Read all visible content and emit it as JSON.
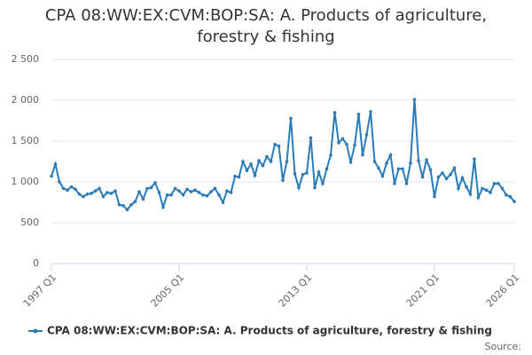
{
  "chart_data": {
    "type": "line",
    "title": "CPA 08:WW:EX:CVM:BOP:SA: A. Products of agriculture, forestry & fishing",
    "source": "Source:",
    "categories": [
      "1997 Q1",
      null,
      null,
      null,
      null,
      null,
      null,
      null,
      null,
      null,
      null,
      null,
      null,
      null,
      null,
      null,
      null,
      null,
      null,
      null,
      null,
      null,
      null,
      null,
      null,
      null,
      null,
      null,
      null,
      null,
      null,
      null,
      "2005 Q1",
      null,
      null,
      null,
      null,
      null,
      null,
      null,
      null,
      null,
      null,
      null,
      null,
      null,
      null,
      null,
      null,
      null,
      null,
      null,
      null,
      null,
      null,
      null,
      null,
      null,
      null,
      null,
      null,
      null,
      null,
      null,
      "2013 Q1",
      null,
      null,
      null,
      null,
      null,
      null,
      null,
      null,
      null,
      null,
      null,
      null,
      null,
      null,
      null,
      null,
      null,
      null,
      null,
      null,
      null,
      null,
      null,
      null,
      null,
      null,
      null,
      null,
      null,
      null,
      null,
      "2021 Q1",
      null,
      null,
      null,
      null,
      null,
      null,
      null,
      null,
      null,
      null,
      null,
      null,
      null,
      null,
      null,
      null,
      null,
      null,
      null,
      "2026 Q1"
    ],
    "series": [
      {
        "name": "CPA 08:WW:EX:CVM:BOP:SA: A. Products of agriculture, forestry & fishing",
        "color": "#2b7bb9",
        "values": [
          1070,
          1220,
          1000,
          920,
          900,
          940,
          910,
          850,
          820,
          850,
          860,
          890,
          920,
          820,
          870,
          860,
          890,
          720,
          710,
          660,
          720,
          760,
          880,
          790,
          920,
          930,
          990,
          870,
          690,
          840,
          840,
          920,
          890,
          840,
          910,
          880,
          900,
          870,
          840,
          830,
          880,
          920,
          840,
          750,
          890,
          870,
          1070,
          1060,
          1250,
          1140,
          1220,
          1080,
          1260,
          1200,
          1310,
          1250,
          1460,
          1440,
          1020,
          1250,
          1780,
          1100,
          930,
          1090,
          1110,
          1540,
          930,
          1120,
          980,
          1160,
          1330,
          1850,
          1480,
          1530,
          1460,
          1240,
          1450,
          1830,
          1330,
          1580,
          1860,
          1250,
          1170,
          1070,
          1230,
          1330,
          980,
          1160,
          1160,
          980,
          1230,
          2010,
          1260,
          1060,
          1270,
          1150,
          820,
          1060,
          1110,
          1040,
          1090,
          1170,
          920,
          1050,
          940,
          850,
          1280,
          810,
          920,
          900,
          870,
          980,
          980,
          920,
          840,
          820,
          760
        ]
      }
    ],
    "ylim": [
      0,
      2500
    ],
    "yticks": [
      0,
      500,
      {
        "value": 1000,
        "label": "1 000"
      },
      {
        "value": 1500,
        "label": "1 500"
      },
      {
        "value": 2000,
        "label": "2 000"
      },
      {
        "value": 2500,
        "label": "2 500"
      }
    ],
    "grid": true
  }
}
